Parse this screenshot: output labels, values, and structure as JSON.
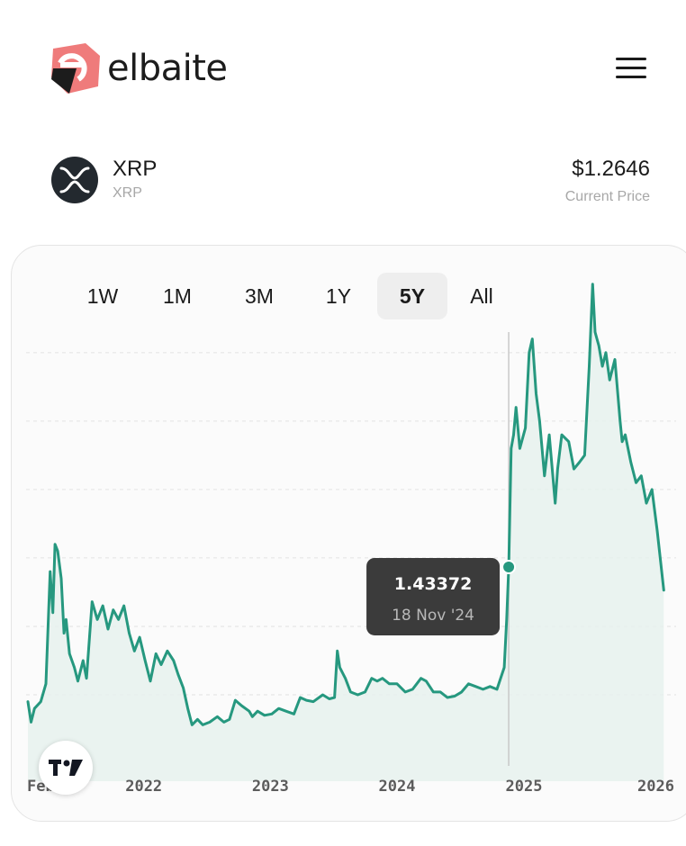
{
  "header": {
    "brand_name": "elbaite",
    "logo_icon": "elbaite-logo-icon",
    "menu_icon": "hamburger-menu-icon"
  },
  "coin": {
    "name": "XRP",
    "symbol": "XRP",
    "icon": "xrp-icon",
    "price": "$1.2646",
    "price_label": "Current Price"
  },
  "range_tabs": [
    {
      "label": "1W",
      "active": false
    },
    {
      "label": "1M",
      "active": false
    },
    {
      "label": "3M",
      "active": false
    },
    {
      "label": "1Y",
      "active": false
    },
    {
      "label": "5Y",
      "active": true
    },
    {
      "label": "All",
      "active": false
    }
  ],
  "colors": {
    "line": "#26987f",
    "area": "#e6f1ee",
    "tooltip_bg": "#3b3b3b",
    "crosshair": "#c8c8c8",
    "gridline": "#e2e2e2"
  },
  "tooltip": {
    "value": "1.43372",
    "date": "18 Nov '24"
  },
  "chart_data": {
    "type": "area",
    "x_tick_labels": [
      "Feb",
      "2022",
      "2023",
      "2024",
      "2025",
      "2026"
    ],
    "x_domain": [
      "2021-02-01",
      "2026-02-15"
    ],
    "ylim": [
      0,
      3.4
    ],
    "grid": "horizontal dashed",
    "series": [
      {
        "x": [
          "2021-02-01",
          "2021-02-10",
          "2021-02-20",
          "2021-03-10",
          "2021-03-25",
          "2021-04-06",
          "2021-04-14",
          "2021-04-20",
          "2021-04-28",
          "2021-05-08",
          "2021-05-16",
          "2021-05-22",
          "2021-06-01",
          "2021-06-15",
          "2021-06-25",
          "2021-07-10",
          "2021-07-20",
          "2021-08-05",
          "2021-08-20",
          "2021-09-05",
          "2021-09-20",
          "2021-10-05",
          "2021-10-20",
          "2021-11-05",
          "2021-11-20",
          "2021-12-05",
          "2021-12-20",
          "2022-01-05",
          "2022-01-20",
          "2022-02-05",
          "2022-02-20",
          "2022-03-10",
          "2022-03-28",
          "2022-04-10",
          "2022-04-25",
          "2022-05-08",
          "2022-05-20",
          "2022-06-05",
          "2022-06-20",
          "2022-07-10",
          "2022-08-01",
          "2022-08-20",
          "2022-09-05",
          "2022-09-22",
          "2022-10-10",
          "2022-11-01",
          "2022-11-10",
          "2022-11-25",
          "2022-12-15",
          "2023-01-05",
          "2023-01-25",
          "2023-02-15",
          "2023-03-10",
          "2023-03-28",
          "2023-04-15",
          "2023-05-05",
          "2023-06-01",
          "2023-06-20",
          "2023-07-05",
          "2023-07-13",
          "2023-07-20",
          "2023-08-05",
          "2023-08-20",
          "2023-09-10",
          "2023-10-01",
          "2023-10-20",
          "2023-11-05",
          "2023-11-20",
          "2023-12-10",
          "2024-01-01",
          "2024-01-25",
          "2024-02-15",
          "2024-03-10",
          "2024-03-25",
          "2024-04-15",
          "2024-05-05",
          "2024-05-25",
          "2024-06-15",
          "2024-07-05",
          "2024-07-25",
          "2024-08-15",
          "2024-09-05",
          "2024-09-25",
          "2024-10-15",
          "2024-11-05",
          "2024-11-12",
          "2024-11-18",
          "2024-11-25",
          "2024-12-02",
          "2024-12-09",
          "2024-12-20",
          "2025-01-05",
          "2025-01-16",
          "2025-01-25",
          "2025-02-05",
          "2025-02-15",
          "2025-03-01",
          "2025-03-15",
          "2025-04-01",
          "2025-04-08",
          "2025-04-20",
          "2025-05-10",
          "2025-05-25",
          "2025-06-10",
          "2025-06-25",
          "2025-07-08",
          "2025-07-18",
          "2025-07-25",
          "2025-08-05",
          "2025-08-15",
          "2025-08-25",
          "2025-09-05",
          "2025-09-20",
          "2025-10-05",
          "2025-10-11",
          "2025-10-20",
          "2025-11-05",
          "2025-11-20",
          "2025-12-05",
          "2025-12-20",
          "2026-01-05",
          "2026-01-20",
          "2026-02-08"
        ],
        "y": [
          0.45,
          0.3,
          0.4,
          0.45,
          0.58,
          1.4,
          1.1,
          1.6,
          1.55,
          1.35,
          0.95,
          1.05,
          0.8,
          0.7,
          0.6,
          0.75,
          0.62,
          1.18,
          1.05,
          1.15,
          0.98,
          1.12,
          1.05,
          1.15,
          0.95,
          0.82,
          0.92,
          0.75,
          0.6,
          0.8,
          0.72,
          0.82,
          0.75,
          0.65,
          0.55,
          0.4,
          0.28,
          0.32,
          0.28,
          0.3,
          0.34,
          0.3,
          0.32,
          0.46,
          0.42,
          0.38,
          0.34,
          0.38,
          0.35,
          0.36,
          0.4,
          0.38,
          0.36,
          0.48,
          0.46,
          0.45,
          0.5,
          0.47,
          0.48,
          0.82,
          0.7,
          0.62,
          0.52,
          0.5,
          0.52,
          0.62,
          0.6,
          0.62,
          0.58,
          0.58,
          0.52,
          0.54,
          0.62,
          0.6,
          0.52,
          0.52,
          0.48,
          0.49,
          0.52,
          0.58,
          0.56,
          0.54,
          0.56,
          0.54,
          0.7,
          1.05,
          1.43372,
          2.3,
          2.4,
          2.6,
          2.3,
          2.45,
          3.0,
          3.1,
          2.7,
          2.5,
          2.1,
          2.4,
          1.9,
          2.15,
          2.4,
          2.35,
          2.15,
          2.2,
          2.25,
          2.9,
          3.5,
          3.15,
          3.05,
          2.9,
          3.0,
          2.8,
          2.95,
          2.5,
          2.35,
          2.4,
          2.2,
          2.05,
          2.1,
          1.9,
          2.0,
          1.7,
          1.2646
        ]
      }
    ],
    "crosshair_point": {
      "x": "2024-11-18",
      "y": 1.43372
    }
  }
}
